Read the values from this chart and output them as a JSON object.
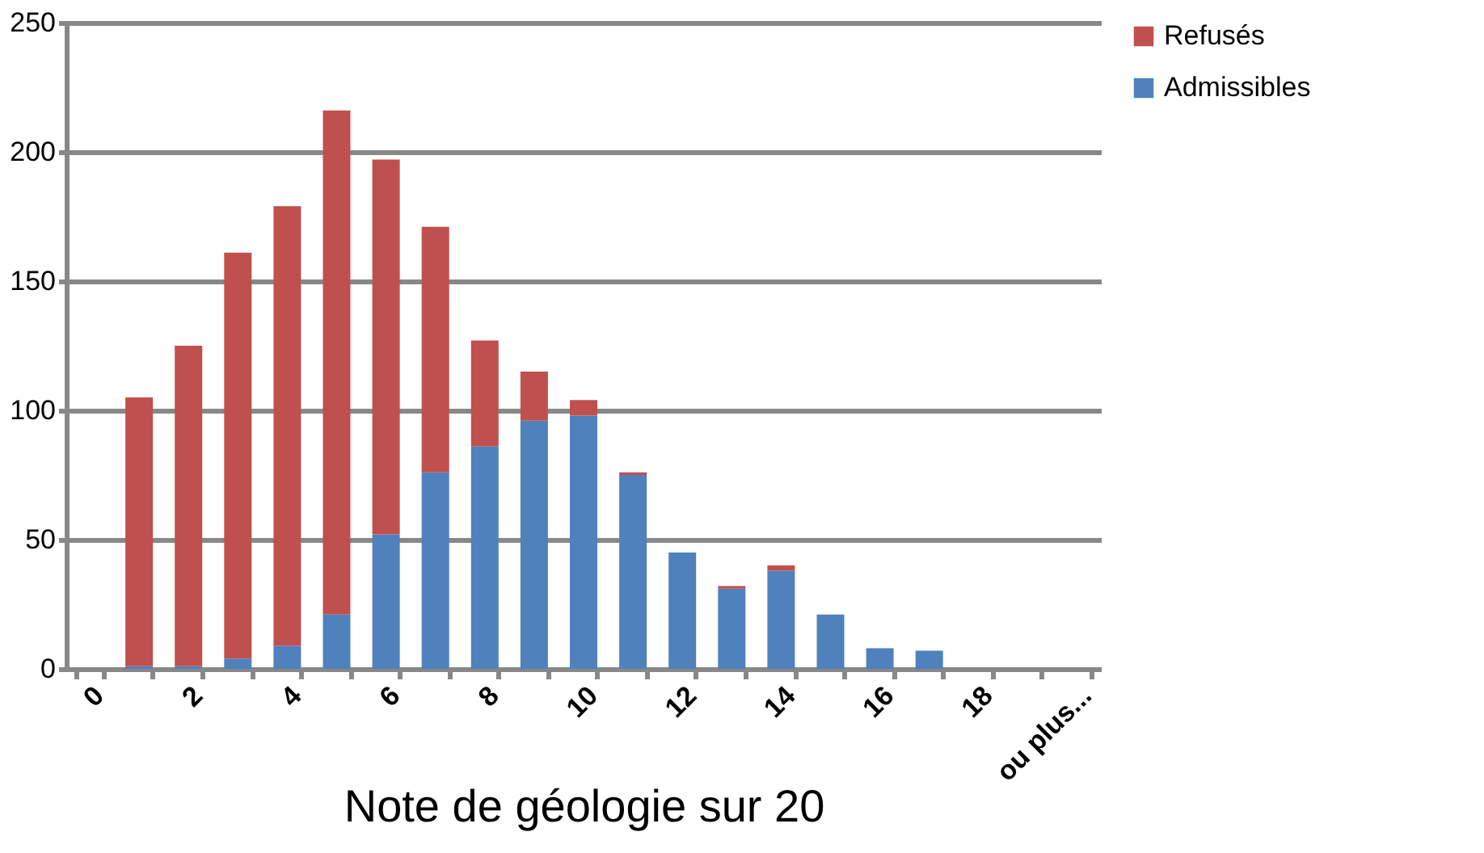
{
  "chart_data": {
    "type": "bar",
    "stacked": true,
    "xlabel": "Note de géologie sur 20",
    "categories": [
      "0",
      null,
      "2",
      null,
      "4",
      null,
      "6",
      null,
      "8",
      null,
      "10",
      null,
      "12",
      null,
      "14",
      null,
      "16",
      null,
      "18",
      null,
      "ou plus..."
    ],
    "series": [
      {
        "name": "Admissibles",
        "color": "#4f81bd",
        "values": [
          0,
          1,
          1,
          4,
          9,
          21,
          52,
          76,
          86,
          96,
          98,
          75,
          45,
          31,
          38,
          21,
          8,
          7,
          0,
          0,
          0
        ]
      },
      {
        "name": "Refusés",
        "color": "#c0504d",
        "values": [
          0,
          104,
          124,
          157,
          170,
          195,
          145,
          95,
          41,
          19,
          6,
          1,
          0,
          1,
          2,
          0,
          0,
          0,
          0,
          0,
          0
        ]
      }
    ],
    "ylim": [
      0,
      250
    ],
    "yticks": [
      0,
      50,
      100,
      150,
      200,
      250
    ],
    "grid": "y",
    "legend": "right"
  }
}
